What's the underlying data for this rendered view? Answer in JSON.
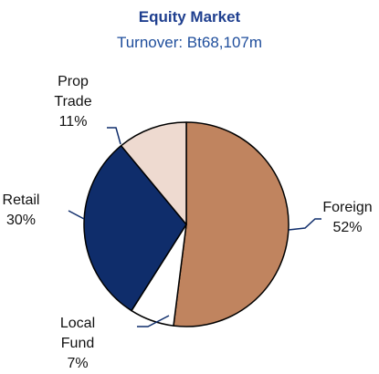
{
  "chart_data": {
    "type": "pie",
    "title": "Equity Market",
    "subtitle": "Turnover: Bt68,107m",
    "categories": [
      "Foreign",
      "Local Fund",
      "Retail",
      "Prop Trade"
    ],
    "values": [
      52,
      7,
      30,
      11
    ],
    "value_labels": [
      "52%",
      "7%",
      "30%",
      "11%"
    ],
    "colors": [
      "#c0845f",
      "#ffffff",
      "#0f2d6b",
      "#eedad0"
    ]
  }
}
